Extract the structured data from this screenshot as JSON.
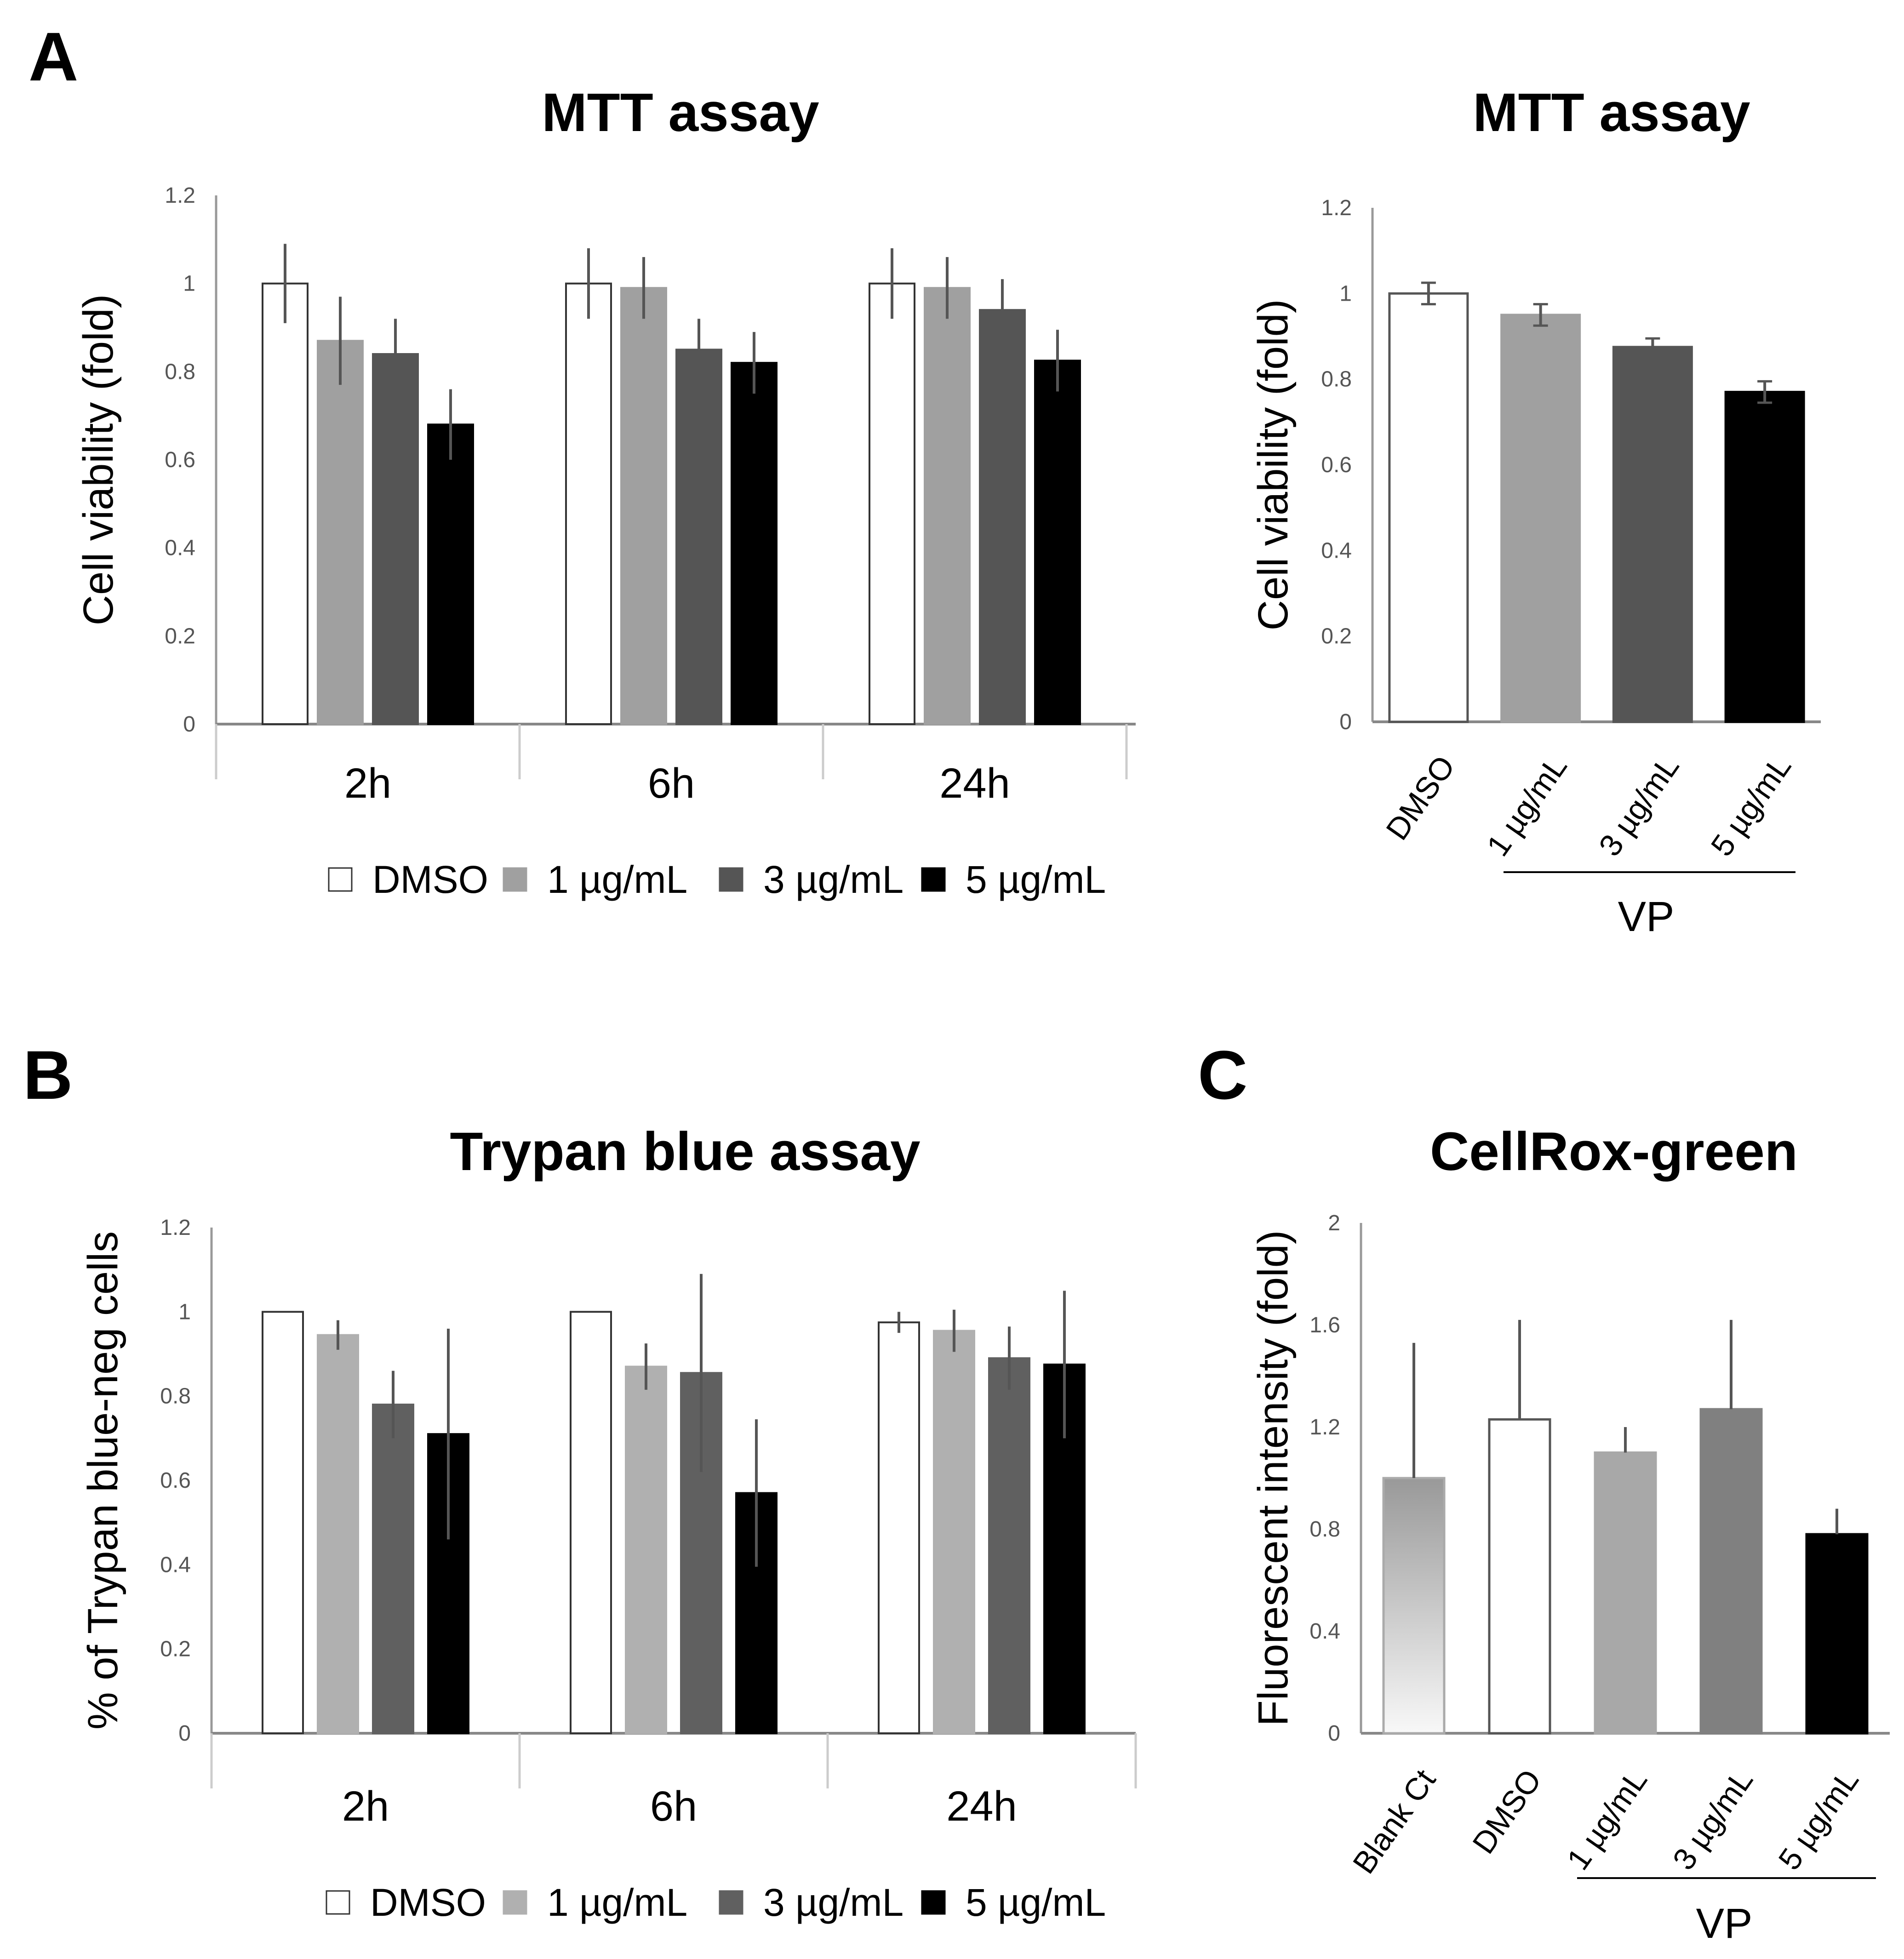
{
  "panels": {
    "a": "A",
    "b": "B",
    "c": "C"
  },
  "chart_data": [
    {
      "id": "A1",
      "type": "bar",
      "title": "MTT assay",
      "xlabel": "",
      "ylabel": "Cell viability (fold)",
      "ylim": [
        0,
        1.2
      ],
      "yticks": [
        "0",
        "0.2",
        "0.4",
        "0.6",
        "0.8",
        "1",
        "1.2"
      ],
      "categories": [
        "2h",
        "6h",
        "24h"
      ],
      "series": [
        {
          "name": "DMSO",
          "color": "#ffffff",
          "values": [
            1.0,
            1.0,
            1.0
          ],
          "errors": [
            0.09,
            0.08,
            0.08
          ]
        },
        {
          "name": "1 µg/mL",
          "color": "#a0a0a0",
          "values": [
            0.87,
            0.99,
            0.99
          ],
          "errors": [
            0.1,
            0.07,
            0.07
          ]
        },
        {
          "name": "3 µg/mL",
          "color": "#555555",
          "values": [
            0.84,
            0.85,
            0.94
          ],
          "errors": [
            0.08,
            0.07,
            0.07
          ]
        },
        {
          "name": "5 µg/mL",
          "color": "#000000",
          "values": [
            0.68,
            0.82,
            0.825
          ],
          "errors": [
            0.08,
            0.07,
            0.07
          ]
        }
      ],
      "legend_position": "bottom"
    },
    {
      "id": "A2",
      "type": "bar",
      "title": "MTT assay",
      "ylabel": "Cell viability (fold)",
      "ylim": [
        0,
        1.2
      ],
      "yticks": [
        "0",
        "0.2",
        "0.4",
        "0.6",
        "0.8",
        "1",
        "1.2"
      ],
      "categories": [
        "DMSO",
        "1 µg/mL",
        "3 µg/mL",
        "5 µg/mL"
      ],
      "values": [
        1.0,
        0.95,
        0.875,
        0.77
      ],
      "errors": [
        0.025,
        0.025,
        0.02,
        0.025
      ],
      "colors": [
        "#ffffff",
        "#a0a0a0",
        "#555555",
        "#000000"
      ],
      "group_label": "VP"
    },
    {
      "id": "B",
      "type": "bar",
      "title": "Trypan blue assay",
      "ylabel": "% of Trypan blue-neg cells",
      "ylim": [
        0,
        1.2
      ],
      "yticks": [
        "0",
        "0.2",
        "0.4",
        "0.6",
        "0.8",
        "1",
        "1.2"
      ],
      "categories": [
        "2h",
        "6h",
        "24h"
      ],
      "series": [
        {
          "name": "DMSO",
          "color": "#ffffff",
          "values": [
            1.0,
            1.0,
            0.975
          ],
          "errors": [
            0,
            0,
            0.025
          ]
        },
        {
          "name": "1 µg/mL",
          "color": "#b0b0b0",
          "values": [
            0.945,
            0.87,
            0.955
          ],
          "errors": [
            0.035,
            0.055,
            0.05
          ]
        },
        {
          "name": "3 µg/mL",
          "color": "#606060",
          "values": [
            0.78,
            0.855,
            0.89
          ],
          "errors": [
            0.08,
            0.235,
            0.075
          ]
        },
        {
          "name": "5 µg/mL",
          "color": "#000000",
          "values": [
            0.71,
            0.57,
            0.875
          ],
          "errors": [
            0.25,
            0.175,
            0.175
          ]
        }
      ],
      "legend_position": "bottom"
    },
    {
      "id": "C",
      "type": "bar",
      "title": "CellRox-green",
      "ylabel": "Fluorescent intensity (fold)",
      "ylim": [
        0,
        2
      ],
      "yticks": [
        "0",
        "0.4",
        "0.8",
        "1.2",
        "1.6",
        "2"
      ],
      "categories": [
        "Blank Ct",
        "DMSO",
        "1 µg/mL",
        "3 µg/mL",
        "5 µg/mL"
      ],
      "values": [
        1.0,
        1.23,
        1.1,
        1.27,
        0.78
      ],
      "errors": [
        0.53,
        0.39,
        0.1,
        0.35,
        0.1
      ],
      "colors": [
        "gradient",
        "#ffffff",
        "#a8a8a8",
        "#808080",
        "#000000"
      ],
      "group_label": "VP"
    }
  ]
}
